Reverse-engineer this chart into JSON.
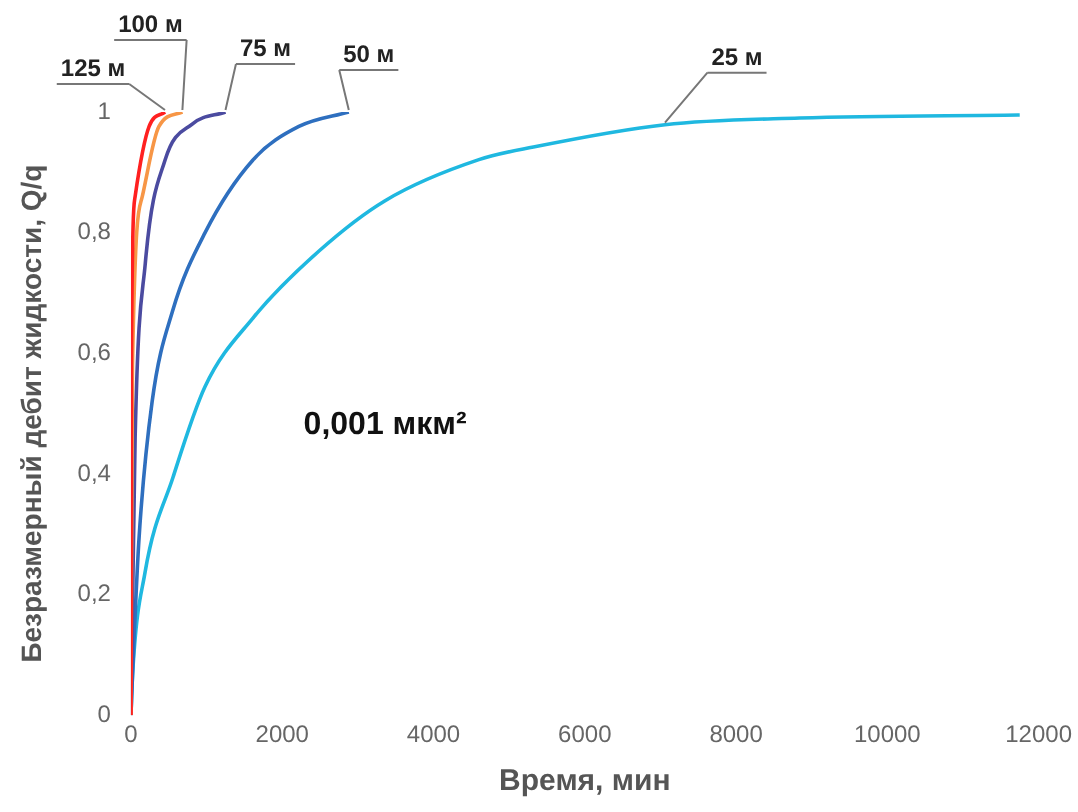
{
  "chart_data": {
    "type": "line",
    "xlabel": "Время, мин",
    "ylabel": "Безразмерный дебит жидкости, Q/q",
    "xlim": [
      0,
      12000
    ],
    "xticks": [
      0,
      2000,
      4000,
      6000,
      8000,
      10000,
      12000
    ],
    "ylim": [
      0,
      1
    ],
    "yticks": [
      0,
      {
        "value": 0.2,
        "label": "0,2"
      },
      {
        "value": 0.4,
        "label": "0,4"
      },
      {
        "value": 0.6,
        "label": "0,6"
      },
      {
        "value": 0.8,
        "label": "0,8"
      },
      1
    ],
    "grid": false,
    "legend": false,
    "marker": "none",
    "line_style": "solid",
    "series": [
      {
        "color": "#ff2020",
        "x": [
          0,
          5,
          55,
          240,
          450
        ],
        "values": [
          0,
          0.58,
          0.86,
          0.976,
          1
        ]
      },
      {
        "color": "#f79646",
        "x": [
          0,
          20,
          150,
          370,
          680
        ],
        "values": [
          0,
          0.58,
          0.86,
          0.976,
          1
        ]
      },
      {
        "color": "#4b4ba0",
        "x": [
          0,
          55,
          190,
          450,
          810,
          1250
        ],
        "values": [
          0,
          0.46,
          0.75,
          0.92,
          0.98,
          1
        ]
      },
      {
        "color": "#2e6fbf",
        "x": [
          0,
          20,
          105,
          280,
          550,
          980,
          1610,
          2220,
          2880
        ],
        "values": [
          0,
          0.065,
          0.29,
          0.52,
          0.67,
          0.8,
          0.92,
          0.976,
          1
        ]
      },
      {
        "color": "#1fb8e0",
        "x": [
          0,
          20,
          185,
          555,
          980,
          1610,
          2490,
          3360,
          4600,
          5320,
          7060,
          8840,
          11750
        ],
        "values": [
          0,
          0.065,
          0.236,
          0.394,
          0.545,
          0.658,
          0.77,
          0.853,
          0.921,
          0.942,
          0.979,
          0.99,
          0.995
        ]
      }
    ],
    "annotations": [
      {
        "text": "125 м",
        "x": 450,
        "y": 1
      },
      {
        "text": "100 м",
        "x": 680,
        "y": 1
      },
      {
        "text": "75 м",
        "x": 1250,
        "y": 1
      },
      {
        "text": "50 м",
        "x": 2880,
        "y": 1
      },
      {
        "text": "25 м",
        "x": 7060,
        "y": 0.979
      },
      "0,001 мкм²"
    ]
  }
}
